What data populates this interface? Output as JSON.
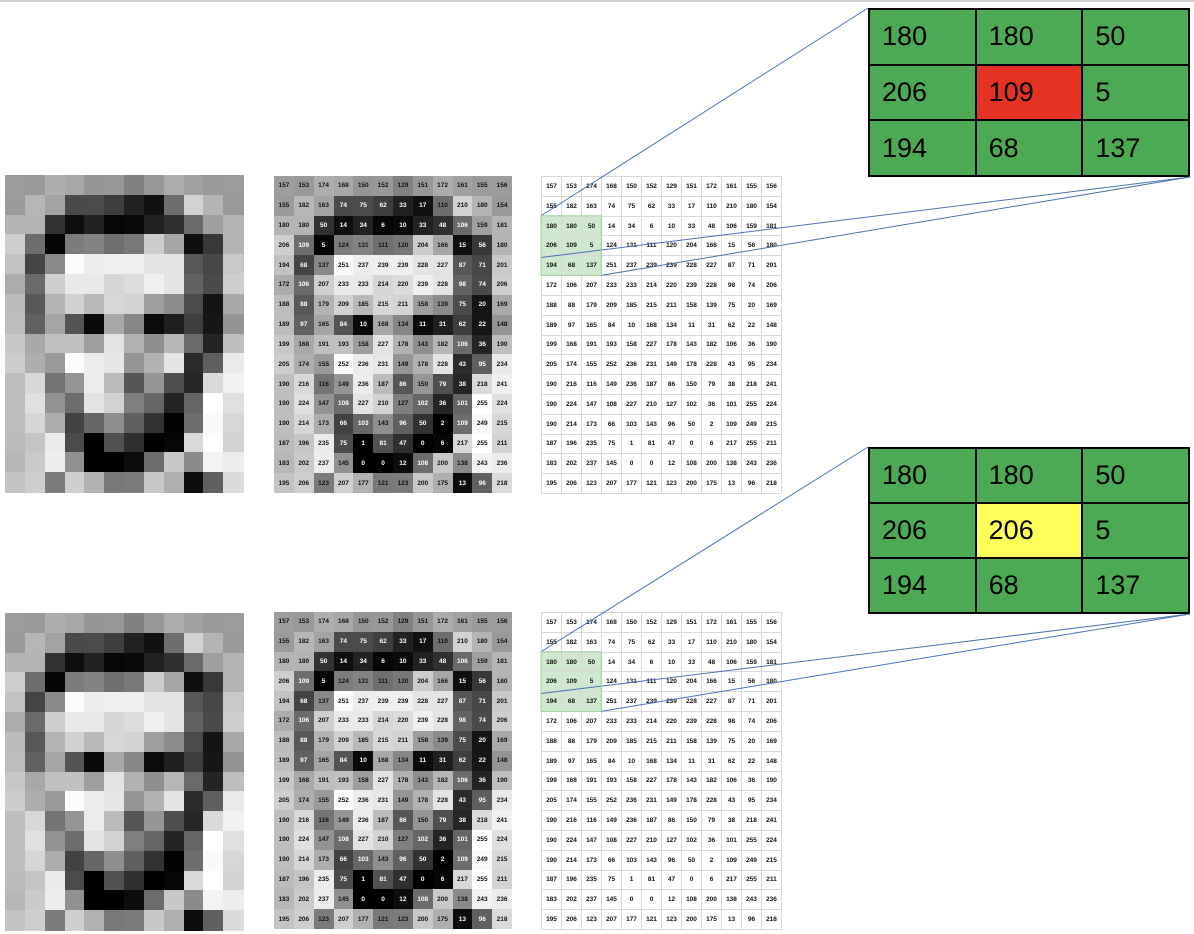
{
  "grid_values": [
    [
      157,
      153,
      174,
      168,
      150,
      152,
      129,
      151,
      172,
      161,
      155,
      156
    ],
    [
      155,
      182,
      163,
      74,
      75,
      62,
      33,
      17,
      110,
      210,
      180,
      154
    ],
    [
      180,
      180,
      50,
      14,
      34,
      6,
      10,
      33,
      48,
      106,
      159,
      181
    ],
    [
      206,
      109,
      5,
      124,
      131,
      111,
      120,
      204,
      166,
      15,
      56,
      180
    ],
    [
      194,
      68,
      137,
      251,
      237,
      239,
      239,
      228,
      227,
      87,
      71,
      201
    ],
    [
      172,
      106,
      207,
      233,
      233,
      214,
      220,
      239,
      228,
      98,
      74,
      206
    ],
    [
      188,
      88,
      179,
      209,
      185,
      215,
      211,
      158,
      139,
      75,
      20,
      169
    ],
    [
      189,
      97,
      165,
      84,
      10,
      168,
      134,
      11,
      31,
      62,
      22,
      148
    ],
    [
      199,
      168,
      191,
      193,
      158,
      227,
      178,
      143,
      182,
      106,
      36,
      190
    ],
    [
      205,
      174,
      155,
      252,
      236,
      231,
      149,
      178,
      228,
      43,
      95,
      234
    ],
    [
      190,
      216,
      116,
      149,
      236,
      187,
      86,
      150,
      79,
      38,
      218,
      241
    ],
    [
      190,
      224,
      147,
      108,
      227,
      210,
      127,
      102,
      36,
      101,
      255,
      224
    ],
    [
      190,
      214,
      173,
      66,
      103,
      143,
      96,
      50,
      2,
      109,
      249,
      215
    ],
    [
      187,
      196,
      235,
      75,
      1,
      81,
      47,
      0,
      6,
      217,
      255,
      211
    ],
    [
      183,
      202,
      237,
      145,
      0,
      0,
      12,
      108,
      200,
      138,
      243,
      236
    ],
    [
      195,
      206,
      123,
      207,
      177,
      121,
      123,
      200,
      175,
      13,
      96,
      218
    ]
  ],
  "selection": {
    "rows": [
      2,
      4
    ],
    "cols": [
      0,
      2
    ]
  },
  "panels": [
    {
      "id": "top",
      "zoom_values": [
        [
          "180",
          "180",
          "50"
        ],
        [
          "206",
          "109",
          "5"
        ],
        [
          "194",
          "68",
          "137"
        ]
      ],
      "center_color": "#e53323",
      "center_text_color": "#000000"
    },
    {
      "id": "bottom",
      "zoom_values": [
        [
          "180",
          "180",
          "50"
        ],
        [
          "206",
          "206",
          "5"
        ],
        [
          "194",
          "68",
          "137"
        ]
      ],
      "center_color": "#ffff5a",
      "center_text_color": "#000000"
    }
  ],
  "colors": {
    "zoom_cell": "#4caa55",
    "connector_line": "#4c73b4",
    "selection_box": "#9fd39f"
  }
}
